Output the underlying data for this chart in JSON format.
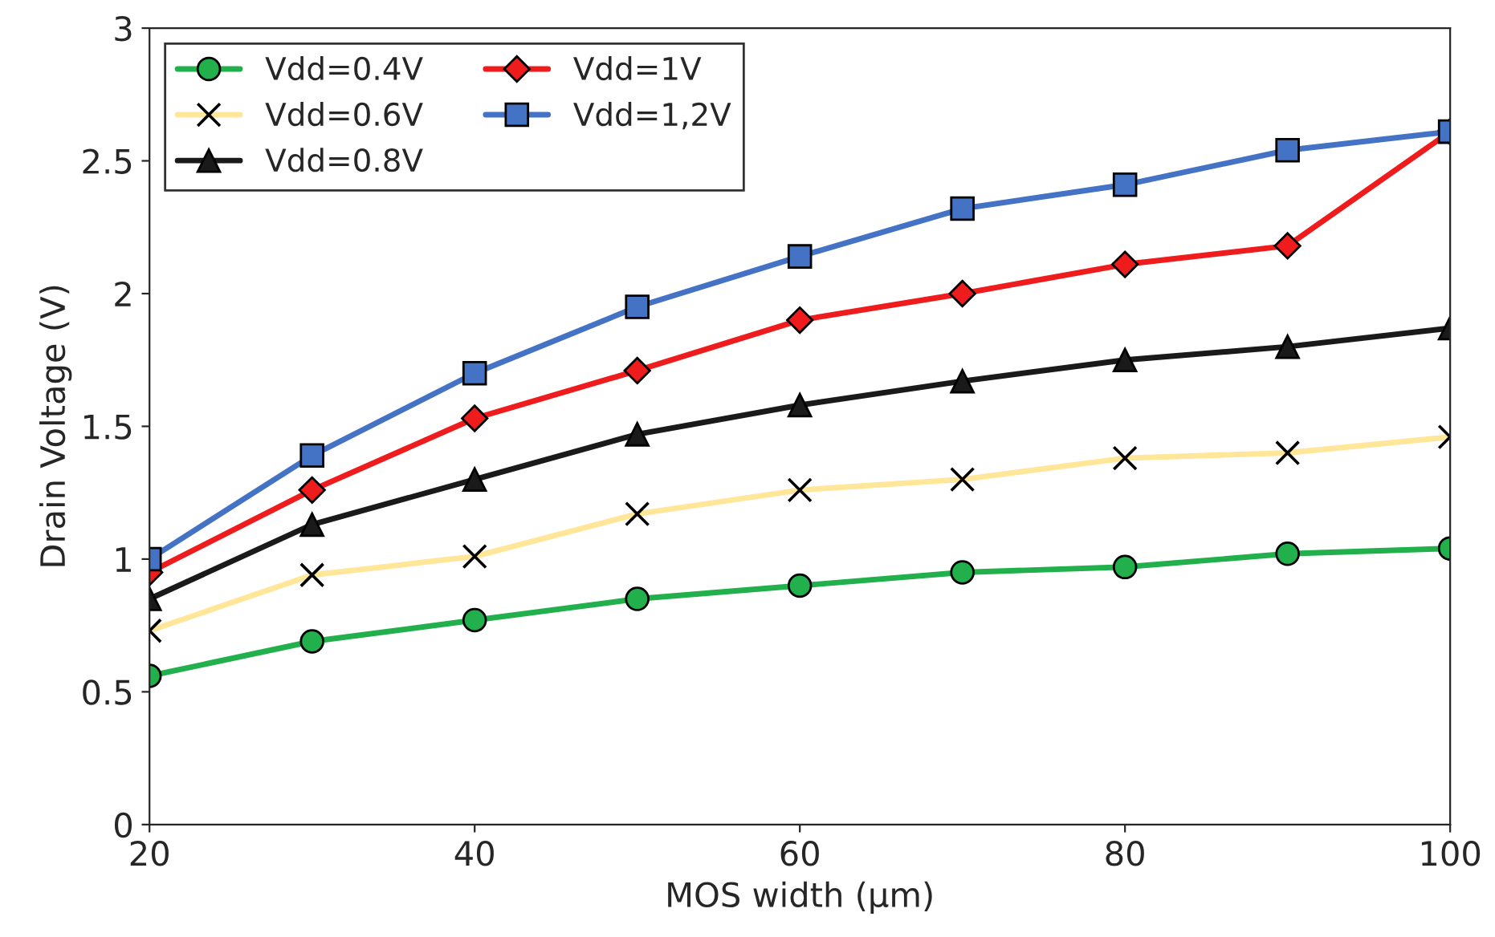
{
  "chart_data": {
    "type": "line",
    "xlabel": "MOS width (µm)",
    "ylabel": "Drain Voltage (V)",
    "x": [
      20,
      30,
      40,
      50,
      60,
      70,
      80,
      90,
      100
    ],
    "xlim": [
      20,
      100
    ],
    "xticks": [
      20,
      40,
      60,
      80,
      100
    ],
    "ylim": [
      0,
      3
    ],
    "yticks": [
      0,
      0.5,
      1,
      1.5,
      2,
      2.5,
      3
    ],
    "grid": false,
    "legend": "top left",
    "line_style": "solid",
    "series": [
      {
        "name": "Vdd=0.4V",
        "color": "#22b04c",
        "marker": "circle",
        "values": [
          0.56,
          0.69,
          0.77,
          0.85,
          0.9,
          0.95,
          0.97,
          1.02,
          1.04
        ]
      },
      {
        "name": "Vdd=0.6V",
        "color": "#ffe699",
        "marker": "cross",
        "values": [
          0.73,
          0.94,
          1.01,
          1.17,
          1.26,
          1.3,
          1.38,
          1.4,
          1.46
        ]
      },
      {
        "name": "Vdd=0.8V",
        "color": "#1a1a1a",
        "marker": "triangle",
        "values": [
          0.85,
          1.13,
          1.3,
          1.47,
          1.58,
          1.67,
          1.75,
          1.8,
          1.87
        ]
      },
      {
        "name": "Vdd=1V",
        "color": "#ee1c1c",
        "marker": "diamond",
        "values": [
          0.95,
          1.26,
          1.53,
          1.71,
          1.9,
          2.0,
          2.11,
          2.18,
          2.61
        ]
      },
      {
        "name": "Vdd=1,2V",
        "color": "#4472c4",
        "marker": "square",
        "values": [
          1.0,
          1.39,
          1.7,
          1.95,
          2.14,
          2.32,
          2.41,
          2.54,
          2.61
        ]
      }
    ]
  }
}
